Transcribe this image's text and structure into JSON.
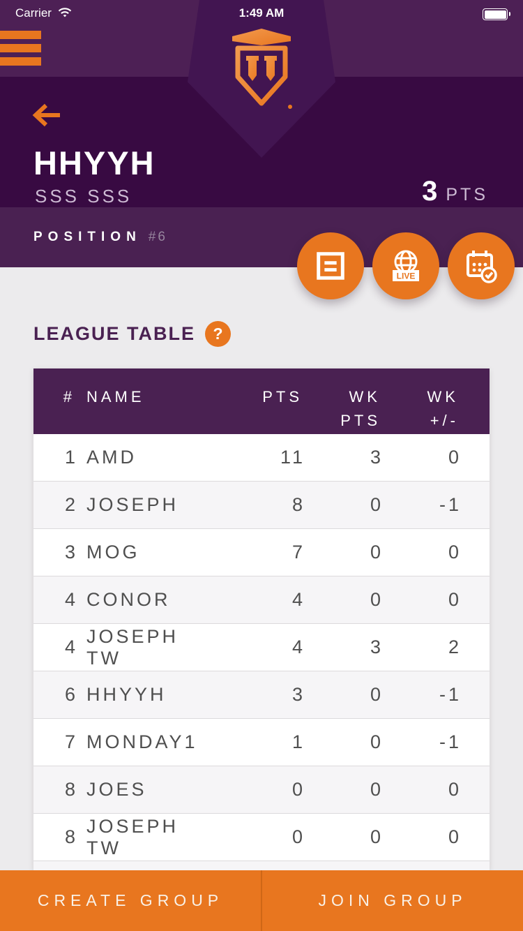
{
  "colors": {
    "band_purple": "#4d2055",
    "header_purple": "#380a42",
    "ribbon_purple": "#421551",
    "bar_purple": "#4a2152",
    "accent_orange": "#e8761f",
    "page_bg": "#ecebed",
    "row_alt_bg": "#f6f5f7"
  },
  "status_bar": {
    "carrier": "Carrier",
    "time": "1:49 AM"
  },
  "header": {
    "group_name": "HHYYH",
    "group_subtitle": "SSS SSS",
    "points_value": "3",
    "points_label": "PTS"
  },
  "position_bar": {
    "label": "POSITION",
    "value": "#6"
  },
  "quick_actions": {
    "live_badge": "LIVE"
  },
  "league_table": {
    "title": "LEAGUE TABLE",
    "help_label": "?",
    "columns": [
      {
        "label": "#",
        "label2": ""
      },
      {
        "label": "NAME",
        "label2": ""
      },
      {
        "label": "PTS",
        "label2": ""
      },
      {
        "label": "WK",
        "label2": "PTS"
      },
      {
        "label": "WK",
        "label2": "+/-"
      }
    ],
    "rows": [
      {
        "rank": "1",
        "name": "AMD",
        "pts": "11",
        "wk_pts": "3",
        "wk_delta": "0"
      },
      {
        "rank": "2",
        "name": "JOSEPH",
        "pts": "8",
        "wk_pts": "0",
        "wk_delta": "-1"
      },
      {
        "rank": "3",
        "name": "MOG",
        "pts": "7",
        "wk_pts": "0",
        "wk_delta": "0"
      },
      {
        "rank": "4",
        "name": "CONOR",
        "pts": "4",
        "wk_pts": "0",
        "wk_delta": "0"
      },
      {
        "rank": "4",
        "name": "JOSEPH TW",
        "pts": "4",
        "wk_pts": "3",
        "wk_delta": "2"
      },
      {
        "rank": "6",
        "name": "HHYYH",
        "pts": "3",
        "wk_pts": "0",
        "wk_delta": "-1"
      },
      {
        "rank": "7",
        "name": "MONDAY1",
        "pts": "1",
        "wk_pts": "0",
        "wk_delta": "-1"
      },
      {
        "rank": "8",
        "name": "JOES",
        "pts": "0",
        "wk_pts": "0",
        "wk_delta": "0"
      },
      {
        "rank": "8",
        "name": "JOSEPH TW",
        "pts": "0",
        "wk_pts": "0",
        "wk_delta": "0"
      }
    ]
  },
  "footer": {
    "create_label": "CREATE GROUP",
    "join_label": "JOIN GROUP"
  }
}
